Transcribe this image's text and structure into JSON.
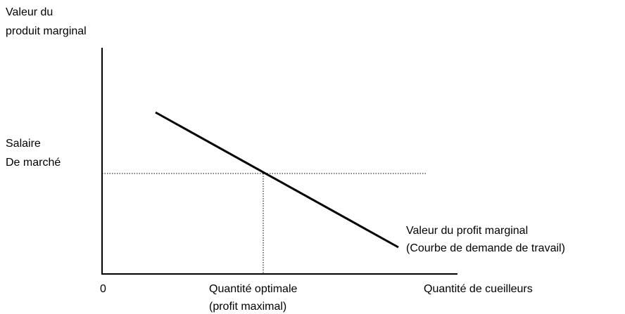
{
  "y_axis": {
    "label": [
      "Valeur du",
      "produit marginal"
    ]
  },
  "wage_label": [
    "Salaire",
    "De marché"
  ],
  "curve_label": [
    "Valeur du profit marginal",
    "(Courbe de demande de travail)"
  ],
  "x_axis": {
    "origin": "0",
    "optimum": [
      "Quantité optimale",
      "(profit maximal)"
    ],
    "label": "Quantité de cueilleurs"
  }
}
